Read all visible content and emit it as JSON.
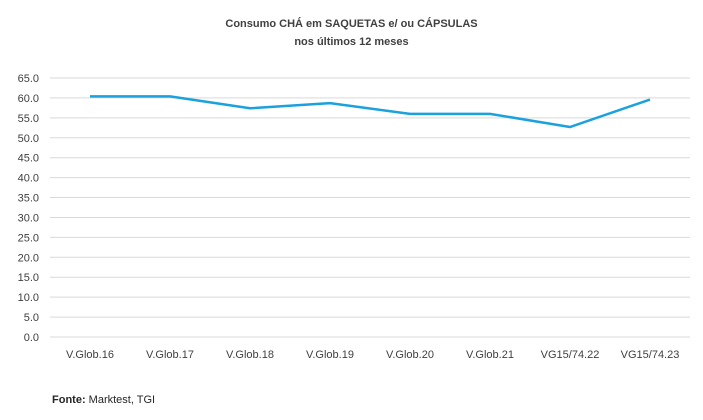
{
  "chart_data": {
    "type": "line",
    "title": "Consumo CHÁ em SAQUETAS e/ ou CÁPSULAS",
    "subtitle": "nos últimos 12 meses",
    "categories": [
      "V.Glob.16",
      "V.Glob.17",
      "V.Glob.18",
      "V.Glob.19",
      "V.Glob.20",
      "V.Glob.21",
      "VG15/74.22",
      "VG15/74.23"
    ],
    "values": [
      60.4,
      60.4,
      57.4,
      58.7,
      56.0,
      56.0,
      52.7,
      59.6
    ],
    "ylim": [
      0,
      65
    ],
    "yticks": [
      "0.0",
      "5.0",
      "10.0",
      "15.0",
      "20.0",
      "25.0",
      "30.0",
      "35.0",
      "40.0",
      "45.0",
      "50.0",
      "55.0",
      "60.0",
      "65.0"
    ],
    "grid": true,
    "line_color": "#1ba1dc"
  },
  "source": {
    "label": "Fonte:",
    "text": " Marktest, TGI"
  }
}
